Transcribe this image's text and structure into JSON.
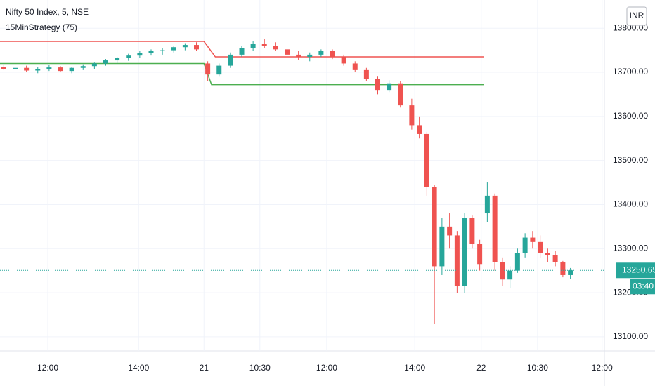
{
  "chart_data": {
    "type": "candlestick",
    "title": "Nifty 50 Index, 5, NSE",
    "indicator": "15MinStrategy (75)",
    "currency": "INR",
    "up_color": "#26a69a",
    "down_color": "#ef5350",
    "x": [
      1,
      4,
      7,
      10,
      13,
      16,
      19,
      22,
      25,
      28,
      31,
      34,
      37,
      40,
      43,
      46,
      49,
      52,
      55,
      58,
      61,
      64,
      67,
      70,
      73,
      76,
      79,
      82,
      85,
      88,
      91,
      94,
      97,
      100,
      103,
      106,
      109,
      111,
      113,
      115,
      117,
      119,
      121,
      123,
      125,
      127,
      129,
      131,
      133,
      135,
      137,
      139,
      141,
      143,
      145,
      147,
      149,
      151
    ],
    "open": [
      13712,
      13708,
      13710,
      13704,
      13708,
      13711,
      13703,
      13710,
      13714,
      13720,
      13727,
      13732,
      13738,
      13744,
      13748,
      13750,
      13757,
      13762,
      13720,
      13695,
      13715,
      13740,
      13755,
      13765,
      13760,
      13752,
      13740,
      13735,
      13740,
      13748,
      13735,
      13720,
      13705,
      13685,
      13660,
      13675,
      13625,
      13580,
      13560,
      13440,
      13260,
      13350,
      13330,
      13215,
      13370,
      13310,
      13380,
      13420,
      13270,
      13230,
      13250,
      13290,
      13325,
      13315,
      13290,
      13285,
      13270,
      13240
    ],
    "high": [
      13716,
      13714,
      13715,
      13712,
      13716,
      13714,
      13712,
      13718,
      13722,
      13730,
      13735,
      13742,
      13748,
      13752,
      13755,
      13760,
      13766,
      13768,
      13725,
      13720,
      13745,
      13760,
      13770,
      13775,
      13768,
      13756,
      13748,
      13745,
      13752,
      13752,
      13740,
      13725,
      13710,
      13690,
      13682,
      13680,
      13640,
      13600,
      13565,
      13445,
      13370,
      13380,
      13340,
      13380,
      13375,
      13320,
      13450,
      13425,
      13280,
      13260,
      13300,
      13335,
      13340,
      13330,
      13300,
      13295,
      13272,
      13256
    ],
    "low": [
      13705,
      13702,
      13700,
      13698,
      13703,
      13700,
      13698,
      13705,
      13708,
      13715,
      13720,
      13726,
      13732,
      13738,
      13740,
      13745,
      13750,
      13748,
      13680,
      13690,
      13710,
      13735,
      13748,
      13755,
      13748,
      13735,
      13728,
      13725,
      13735,
      13730,
      13715,
      13700,
      13680,
      13650,
      13655,
      13620,
      13570,
      13550,
      13420,
      13130,
      13240,
      13300,
      13200,
      13200,
      13300,
      13250,
      13360,
      13250,
      13215,
      13210,
      13245,
      13280,
      13300,
      13280,
      13270,
      13260,
      13235,
      13232
    ],
    "close": [
      13708,
      13710,
      13704,
      13708,
      13711,
      13703,
      13710,
      13714,
      13720,
      13727,
      13732,
      13738,
      13744,
      13748,
      13750,
      13757,
      13762,
      13752,
      13695,
      13715,
      13740,
      13755,
      13765,
      13760,
      13752,
      13740,
      13735,
      13740,
      13748,
      13735,
      13720,
      13705,
      13685,
      13660,
      13675,
      13625,
      13580,
      13560,
      13440,
      13260,
      13350,
      13330,
      13215,
      13370,
      13310,
      13265,
      13420,
      13270,
      13230,
      13250,
      13290,
      13325,
      13315,
      13290,
      13285,
      13270,
      13240,
      13250.65
    ],
    "overlays": [
      {
        "color": "#ef5350",
        "x": [
          0,
          54,
          57,
          128
        ],
        "values": [
          13770,
          13770,
          13735,
          13735
        ]
      },
      {
        "color": "#4caf50",
        "x": [
          0,
          54,
          56,
          128
        ],
        "values": [
          13720,
          13720,
          13672,
          13672
        ]
      }
    ],
    "last_price": {
      "value": 13250.65,
      "label": "13250.65",
      "countdown": "03:40"
    },
    "xlim": [
      0,
      160
    ],
    "ylim": [
      13068,
      13864
    ],
    "xticks": [
      {
        "value": 12.65,
        "label": "12:00"
      },
      {
        "value": 36.7,
        "label": "14:00"
      },
      {
        "value": 54,
        "label": "21"
      },
      {
        "value": 68.8,
        "label": "10:30"
      },
      {
        "value": 86.5,
        "label": "12:00"
      },
      {
        "value": 109.8,
        "label": "14:00"
      },
      {
        "value": 127.4,
        "label": "22"
      },
      {
        "value": 142.3,
        "label": "10:30"
      },
      {
        "value": 159.4,
        "label": "12:00"
      }
    ],
    "yticks": [
      {
        "value": 13100,
        "label": "13100.00"
      },
      {
        "value": 13200,
        "label": "13200.00"
      },
      {
        "value": 13300,
        "label": "13300.00"
      },
      {
        "value": 13400,
        "label": "13400.00"
      },
      {
        "value": 13500,
        "label": "13500.00"
      },
      {
        "value": 13600,
        "label": "13600.00"
      },
      {
        "value": 13700,
        "label": "13700.00"
      },
      {
        "value": 13800,
        "label": "13800.00"
      }
    ],
    "grid": true
  }
}
